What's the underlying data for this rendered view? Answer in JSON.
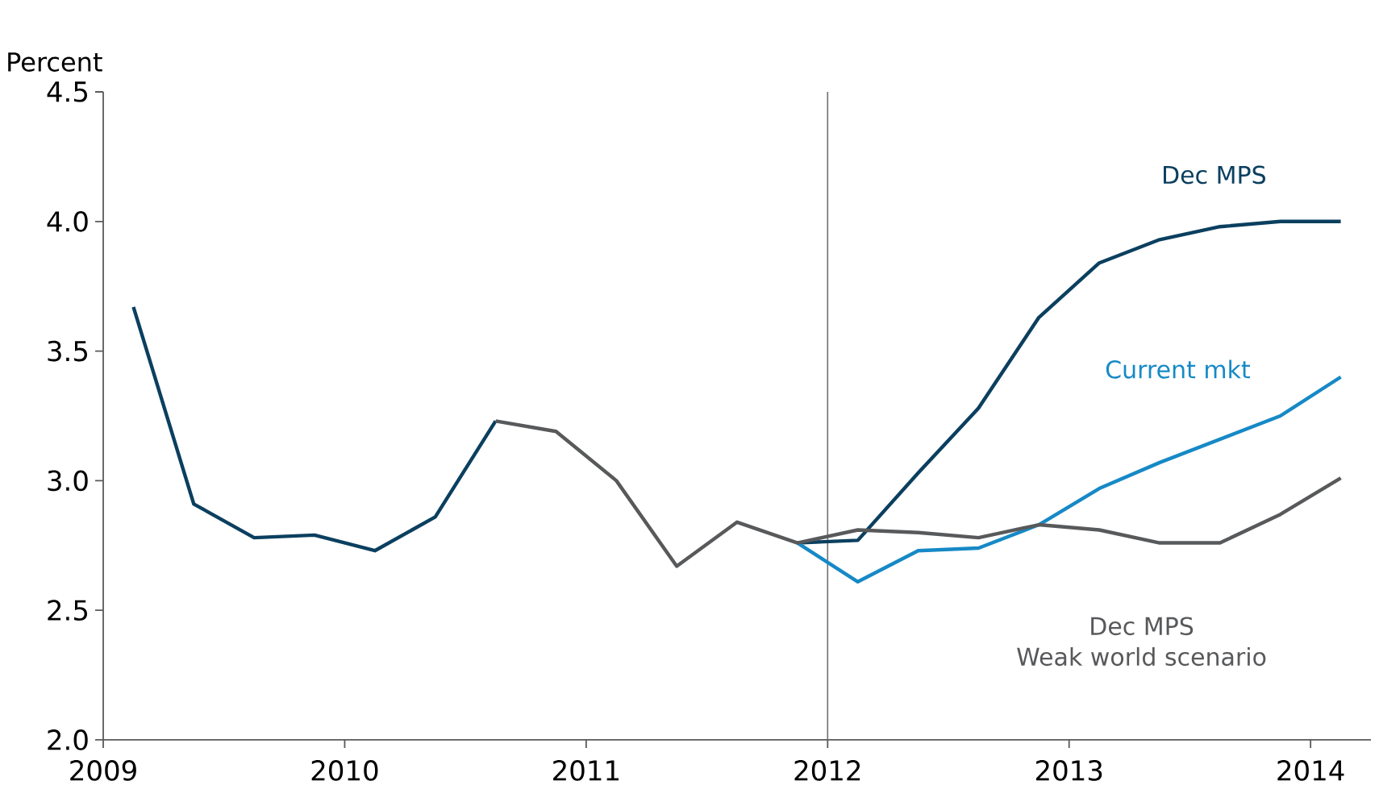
{
  "chart_data": {
    "type": "line",
    "ylabel": "Percent",
    "xlim": [
      2009,
      2014.25
    ],
    "xticks": [
      2009,
      2010,
      2011,
      2012,
      2013,
      2014
    ],
    "ylim": [
      2.0,
      4.5
    ],
    "yticks": [
      {
        "value": 2.0,
        "label": "2.0"
      },
      {
        "value": 2.5,
        "label": "2.5"
      },
      {
        "value": 3.0,
        "label": "3.0"
      },
      {
        "value": 3.5,
        "label": "3.5"
      },
      {
        "value": 4.0,
        "label": "4.0"
      },
      {
        "value": 4.5,
        "label": "4.5"
      }
    ],
    "line_style": "solid",
    "ref_lines": [
      {
        "axis": "x",
        "value": 2012,
        "color": "#707070"
      }
    ],
    "series": [
      {
        "name": "Dec MPS",
        "color": "#0b3f5f",
        "x": [
          2009.125,
          2009.375,
          2009.625,
          2009.875,
          2010.125,
          2010.375,
          2010.625,
          2010.875,
          2011.125,
          2011.375,
          2011.625,
          2011.875,
          2012.125,
          2012.375,
          2012.625,
          2012.875,
          2013.125,
          2013.375,
          2013.625,
          2013.875,
          2014.125
        ],
        "values": [
          3.67,
          2.91,
          2.78,
          2.79,
          2.73,
          2.86,
          3.23,
          null,
          null,
          null,
          null,
          2.76,
          2.77,
          3.03,
          3.28,
          3.63,
          3.84,
          3.93,
          3.98,
          4.0,
          4.0
        ]
      },
      {
        "name": "Current mkt",
        "color": "#1689c6",
        "x": [
          2011.875,
          2012.125,
          2012.375,
          2012.625,
          2012.875,
          2013.125,
          2013.375,
          2013.625,
          2013.875,
          2014.125
        ],
        "values": [
          2.76,
          2.61,
          2.73,
          2.74,
          2.83,
          2.97,
          3.07,
          3.16,
          3.25,
          3.4
        ]
      },
      {
        "name": "Dec MPS Weak world scenario",
        "color": "#58595b",
        "x": [
          2010.625,
          2010.875,
          2011.125,
          2011.375,
          2011.625,
          2011.875,
          2012.125,
          2012.375,
          2012.625,
          2012.875,
          2013.125,
          2013.375,
          2013.625,
          2013.875,
          2014.125
        ],
        "values": [
          3.23,
          3.19,
          3.0,
          2.67,
          2.84,
          2.76,
          2.81,
          2.8,
          2.78,
          2.83,
          2.81,
          2.76,
          2.76,
          2.87,
          3.01
        ]
      }
    ]
  }
}
